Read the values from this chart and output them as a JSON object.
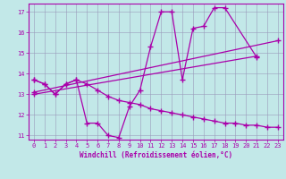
{
  "xlabel": "Windchill (Refroidissement éolien,°C)",
  "xlim": [
    -0.5,
    23.5
  ],
  "ylim": [
    10.8,
    17.4
  ],
  "xticks": [
    0,
    1,
    2,
    3,
    4,
    5,
    6,
    7,
    8,
    9,
    10,
    11,
    12,
    13,
    14,
    15,
    16,
    17,
    18,
    19,
    20,
    21,
    22,
    23
  ],
  "yticks": [
    11,
    12,
    13,
    14,
    15,
    16,
    17
  ],
  "bg_color": "#c2e8e8",
  "line_color": "#aa00aa",
  "grid_color": "#9999bb",
  "lines": [
    {
      "x": [
        0,
        1,
        2,
        3,
        4,
        5,
        6,
        7,
        8,
        9,
        10,
        11,
        12,
        13,
        14,
        15,
        16,
        17,
        18,
        21
      ],
      "y": [
        13.7,
        13.5,
        13.0,
        13.5,
        13.7,
        11.6,
        11.6,
        11.0,
        10.9,
        12.4,
        13.2,
        15.3,
        17.0,
        17.0,
        13.7,
        16.2,
        16.3,
        17.2,
        17.2,
        14.8
      ]
    },
    {
      "x": [
        0,
        23
      ],
      "y": [
        13.1,
        15.6
      ]
    },
    {
      "x": [
        0,
        21
      ],
      "y": [
        13.0,
        14.85
      ]
    },
    {
      "x": [
        0,
        1,
        2,
        3,
        4,
        5,
        6,
        7,
        8,
        9,
        10,
        11,
        12,
        13,
        14,
        15,
        16,
        17,
        18,
        19,
        20,
        21,
        22,
        23
      ],
      "y": [
        13.7,
        13.5,
        13.0,
        13.5,
        13.7,
        13.5,
        13.2,
        12.9,
        12.7,
        12.6,
        12.5,
        12.3,
        12.2,
        12.1,
        12.0,
        11.9,
        11.8,
        11.7,
        11.6,
        11.6,
        11.5,
        11.5,
        11.4,
        11.4
      ]
    }
  ]
}
